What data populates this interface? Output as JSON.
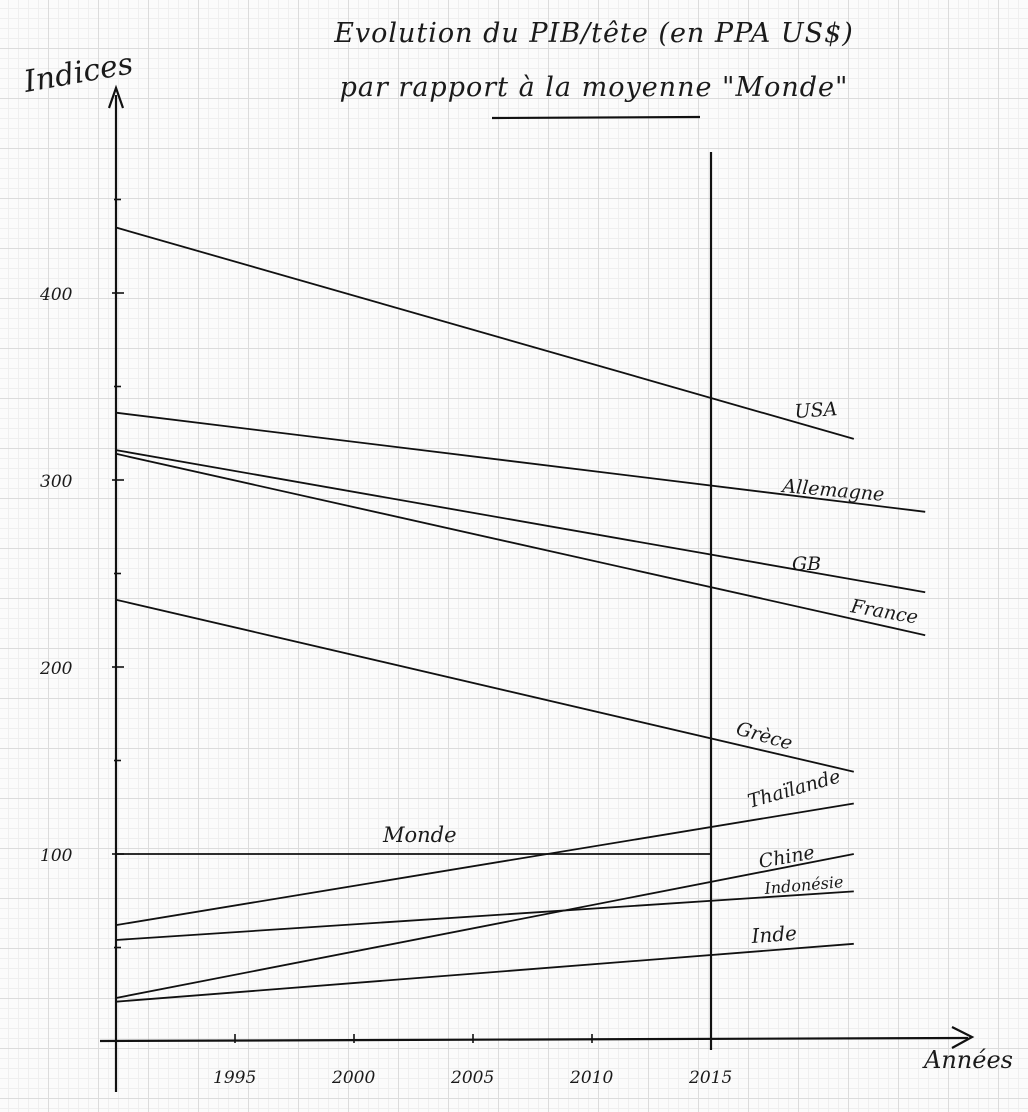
{
  "chart_data": {
    "type": "line",
    "title": "Evolution du PIB/tête (en PPA US$)",
    "subtitle": "par rapport à la moyenne \"Monde\"",
    "ylabel": "Indices",
    "xlabel": "Années",
    "xlim": [
      1990,
      2021
    ],
    "ylim": [
      0,
      510
    ],
    "y_ticks": [
      100,
      200,
      300,
      400
    ],
    "y_tick_labels": [
      "100",
      "200",
      "300",
      "400"
    ],
    "x_ticks": [
      1995,
      2000,
      2005,
      2010,
      2015
    ],
    "x_tick_labels": [
      "1995",
      "2000",
      "2005",
      "2010",
      "2015"
    ],
    "reference_year": 2015,
    "series": [
      {
        "name": "USA",
        "x": [
          1990,
          2021
        ],
        "y": [
          435,
          322
        ]
      },
      {
        "name": "Allemagne",
        "x": [
          1990,
          2024
        ],
        "y": [
          336,
          283
        ]
      },
      {
        "name": "GB",
        "x": [
          1990,
          2024
        ],
        "y": [
          316,
          240
        ]
      },
      {
        "name": "France",
        "x": [
          1990,
          2024
        ],
        "y": [
          314,
          217
        ]
      },
      {
        "name": "Grèce",
        "x": [
          1990,
          2021
        ],
        "y": [
          236,
          144
        ]
      },
      {
        "name": "Thaïlande",
        "x": [
          1990,
          2021
        ],
        "y": [
          62,
          127
        ]
      },
      {
        "name": "Monde",
        "x": [
          1990,
          2015
        ],
        "y": [
          100,
          100
        ]
      },
      {
        "name": "Chine",
        "x": [
          1990,
          2021
        ],
        "y": [
          23,
          100
        ]
      },
      {
        "name": "Indonésie",
        "x": [
          1990,
          2021
        ],
        "y": [
          54,
          80
        ]
      },
      {
        "name": "Inde",
        "x": [
          1990,
          2021
        ],
        "y": [
          21,
          52
        ]
      }
    ]
  }
}
